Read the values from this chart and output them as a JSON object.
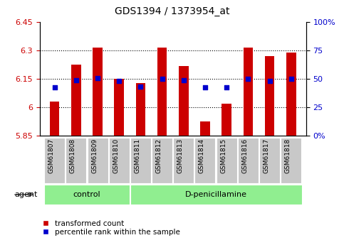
{
  "title": "GDS1394 / 1373954_at",
  "samples": [
    "GSM61807",
    "GSM61808",
    "GSM61809",
    "GSM61810",
    "GSM61811",
    "GSM61812",
    "GSM61813",
    "GSM61814",
    "GSM61815",
    "GSM61816",
    "GSM61817",
    "GSM61818"
  ],
  "bar_tops": [
    6.03,
    6.225,
    6.315,
    6.15,
    6.13,
    6.315,
    6.22,
    5.925,
    6.02,
    6.315,
    6.27,
    6.29
  ],
  "bar_bottom": 5.85,
  "percentile_values": [
    6.105,
    6.145,
    6.155,
    6.14,
    6.11,
    6.15,
    6.145,
    6.107,
    6.107,
    6.15,
    6.138,
    6.15
  ],
  "ylim_left": [
    5.85,
    6.45
  ],
  "ylim_right": [
    0,
    100
  ],
  "yticks_left": [
    5.85,
    6.0,
    6.15,
    6.3,
    6.45
  ],
  "ytick_labels_left": [
    "5.85",
    "6",
    "6.15",
    "6.3",
    "6.45"
  ],
  "yticks_right": [
    0,
    25,
    50,
    75,
    100
  ],
  "ytick_labels_right": [
    "0%",
    "25",
    "50",
    "75",
    "100%"
  ],
  "grid_yticks": [
    6.0,
    6.15,
    6.3
  ],
  "bar_color": "#CC0000",
  "dot_color": "#0000CC",
  "n_control": 4,
  "n_treatment": 8,
  "group_control_label": "control",
  "group_treatment_label": "D-penicillamine",
  "agent_label": "agent",
  "legend_bar_label": "transformed count",
  "legend_dot_label": "percentile rank within the sample",
  "tick_label_color_left": "#CC0000",
  "tick_label_color_right": "#0000CC",
  "xticklabel_bg": "#C8C8C8",
  "group_bg": "#90EE90"
}
